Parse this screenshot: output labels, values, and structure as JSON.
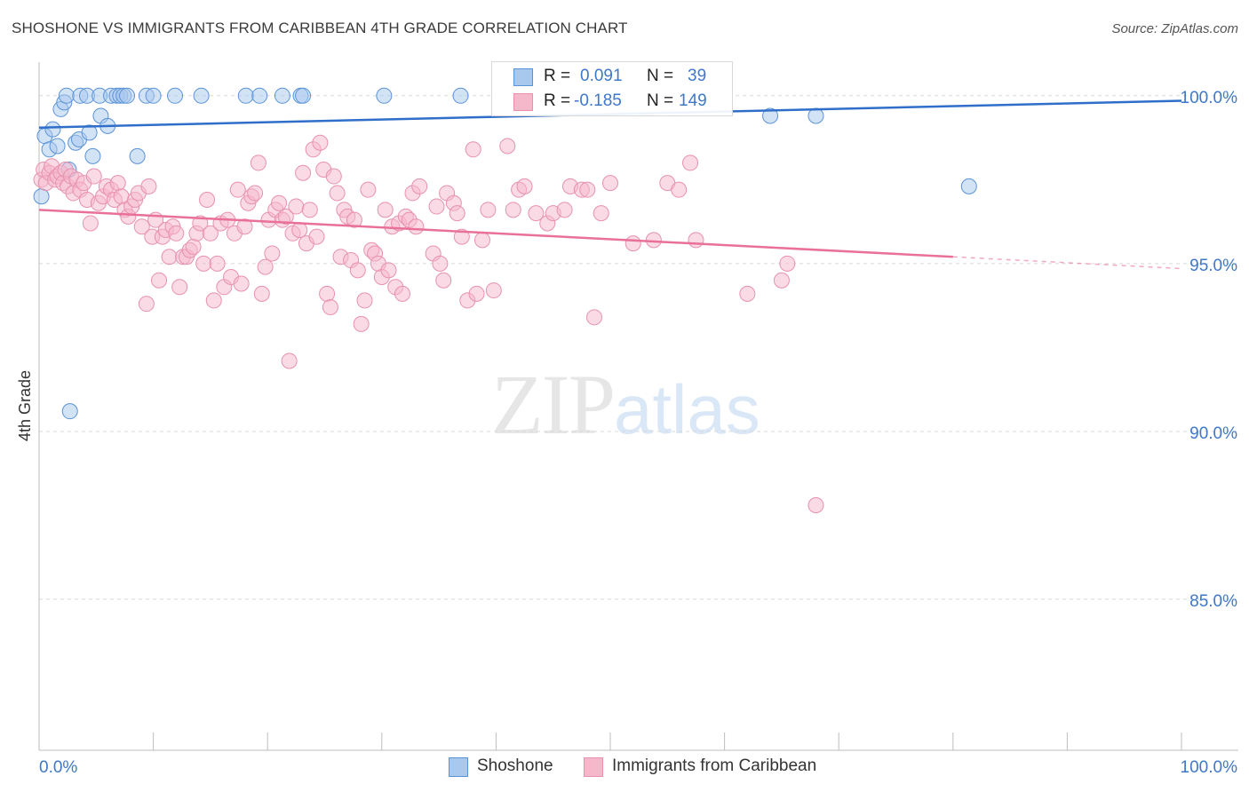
{
  "header": {
    "title": "SHOSHONE VS IMMIGRANTS FROM CARIBBEAN 4TH GRADE CORRELATION CHART",
    "source": "Source: ZipAtlas.com"
  },
  "watermark": {
    "part1": "ZIP",
    "part2": "atlas"
  },
  "legend": {
    "rows": [
      {
        "r_label": "R =",
        "r_value": "0.091",
        "n_label": "N =",
        "n_value": "39"
      },
      {
        "r_label": "R =",
        "r_value": "-0.185",
        "n_label": "N =",
        "n_value": "149"
      }
    ]
  },
  "bottom_legend": [
    "Shoshone",
    "Immigrants from Caribbean"
  ],
  "colors": {
    "blue_fill": "#a8c8ee",
    "blue_stroke": "#5b93d6",
    "blue_line": "#2f6fc9",
    "pink_fill": "#f5b8cb",
    "pink_stroke": "#e891ad",
    "pink_line": "#e8709a",
    "axis_label": "#3f78c8",
    "grid": "#d9d9d9"
  },
  "chart_data": {
    "type": "scatter",
    "title": "SHOSHONE VS IMMIGRANTS FROM CARIBBEAN 4TH GRADE CORRELATION CHART",
    "xlabel": "",
    "ylabel": "4th Grade",
    "xlim": [
      0,
      100
    ],
    "ylim": [
      80.5,
      101.0
    ],
    "x_tick_labels": [
      "0.0%",
      "100.0%"
    ],
    "y_ticks": [
      85,
      90,
      95,
      100
    ],
    "y_tick_labels": [
      "85.0%",
      "90.0%",
      "95.0%",
      "100.0%"
    ],
    "grid": true,
    "series": [
      {
        "name": "Shoshone",
        "color": "blue",
        "R": 0.091,
        "N": 39,
        "trend": {
          "x": [
            0,
            100
          ],
          "y": [
            99.05,
            99.85
          ],
          "dashed_from": null
        },
        "points": [
          [
            0.2,
            97.0
          ],
          [
            0.5,
            98.8
          ],
          [
            0.9,
            98.4
          ],
          [
            1.2,
            99.0
          ],
          [
            1.6,
            98.5
          ],
          [
            1.9,
            99.6
          ],
          [
            2.2,
            99.8
          ],
          [
            2.4,
            100.0
          ],
          [
            2.6,
            97.8
          ],
          [
            2.7,
            90.6
          ],
          [
            3.2,
            98.6
          ],
          [
            3.5,
            98.7
          ],
          [
            3.6,
            100.0
          ],
          [
            4.2,
            100.0
          ],
          [
            4.4,
            98.9
          ],
          [
            4.7,
            98.2
          ],
          [
            5.3,
            100.0
          ],
          [
            5.4,
            99.4
          ],
          [
            6.0,
            99.1
          ],
          [
            6.3,
            100.0
          ],
          [
            6.8,
            100.0
          ],
          [
            7.1,
            100.0
          ],
          [
            7.4,
            100.0
          ],
          [
            7.7,
            100.0
          ],
          [
            8.6,
            98.2
          ],
          [
            9.4,
            100.0
          ],
          [
            10.0,
            100.0
          ],
          [
            11.9,
            100.0
          ],
          [
            14.2,
            100.0
          ],
          [
            18.1,
            100.0
          ],
          [
            19.3,
            100.0
          ],
          [
            21.3,
            100.0
          ],
          [
            22.9,
            100.0
          ],
          [
            23.1,
            100.0
          ],
          [
            30.2,
            100.0
          ],
          [
            36.9,
            100.0
          ],
          [
            64.0,
            99.4
          ],
          [
            68.0,
            99.4
          ],
          [
            81.4,
            97.3
          ]
        ]
      },
      {
        "name": "Immigrants from Caribbean",
        "color": "pink",
        "R": -0.185,
        "N": 149,
        "trend": {
          "x": [
            0,
            100
          ],
          "y": [
            96.6,
            94.85
          ],
          "dashed_from": 80.0
        },
        "points": [
          [
            0.2,
            97.5
          ],
          [
            0.4,
            97.8
          ],
          [
            0.6,
            97.4
          ],
          [
            0.9,
            97.7
          ],
          [
            1.1,
            97.9
          ],
          [
            1.4,
            97.5
          ],
          [
            1.6,
            97.6
          ],
          [
            1.9,
            97.7
          ],
          [
            2.1,
            97.4
          ],
          [
            2.3,
            97.8
          ],
          [
            2.5,
            97.3
          ],
          [
            2.8,
            97.6
          ],
          [
            3.0,
            97.1
          ],
          [
            3.3,
            97.5
          ],
          [
            3.6,
            97.2
          ],
          [
            3.9,
            97.4
          ],
          [
            4.2,
            96.9
          ],
          [
            4.5,
            96.2
          ],
          [
            4.8,
            97.6
          ],
          [
            5.2,
            96.8
          ],
          [
            5.6,
            97.0
          ],
          [
            5.9,
            97.3
          ],
          [
            6.3,
            97.2
          ],
          [
            6.6,
            96.9
          ],
          [
            6.9,
            97.4
          ],
          [
            7.2,
            97.0
          ],
          [
            7.5,
            96.6
          ],
          [
            7.8,
            96.4
          ],
          [
            8.1,
            96.7
          ],
          [
            8.4,
            96.9
          ],
          [
            8.7,
            97.1
          ],
          [
            9.0,
            96.1
          ],
          [
            9.4,
            93.8
          ],
          [
            9.6,
            97.3
          ],
          [
            9.9,
            95.8
          ],
          [
            10.2,
            96.3
          ],
          [
            10.5,
            94.5
          ],
          [
            10.8,
            95.8
          ],
          [
            11.1,
            96.0
          ],
          [
            11.4,
            95.2
          ],
          [
            11.7,
            96.1
          ],
          [
            12.0,
            95.9
          ],
          [
            12.3,
            94.3
          ],
          [
            12.6,
            95.2
          ],
          [
            12.9,
            95.2
          ],
          [
            13.2,
            95.4
          ],
          [
            13.5,
            95.5
          ],
          [
            13.8,
            95.9
          ],
          [
            14.1,
            96.2
          ],
          [
            14.4,
            95.0
          ],
          [
            14.7,
            96.9
          ],
          [
            15.0,
            95.9
          ],
          [
            15.3,
            93.9
          ],
          [
            15.6,
            95.0
          ],
          [
            15.9,
            96.2
          ],
          [
            16.2,
            94.3
          ],
          [
            16.5,
            96.3
          ],
          [
            16.8,
            94.6
          ],
          [
            17.1,
            95.9
          ],
          [
            17.4,
            97.2
          ],
          [
            17.7,
            94.4
          ],
          [
            18.0,
            96.1
          ],
          [
            18.3,
            96.8
          ],
          [
            18.6,
            97.0
          ],
          [
            18.9,
            97.1
          ],
          [
            19.2,
            98.0
          ],
          [
            19.5,
            94.1
          ],
          [
            19.8,
            94.9
          ],
          [
            20.1,
            96.3
          ],
          [
            20.4,
            95.3
          ],
          [
            20.7,
            96.6
          ],
          [
            21.0,
            96.8
          ],
          [
            21.3,
            96.3
          ],
          [
            21.6,
            96.4
          ],
          [
            21.9,
            92.1
          ],
          [
            22.2,
            95.9
          ],
          [
            22.5,
            96.7
          ],
          [
            22.8,
            96.0
          ],
          [
            23.1,
            97.7
          ],
          [
            23.4,
            95.6
          ],
          [
            23.7,
            96.6
          ],
          [
            24.0,
            98.4
          ],
          [
            24.3,
            95.8
          ],
          [
            24.6,
            98.6
          ],
          [
            24.9,
            97.8
          ],
          [
            25.2,
            94.1
          ],
          [
            25.5,
            93.7
          ],
          [
            25.8,
            97.6
          ],
          [
            26.1,
            97.1
          ],
          [
            26.4,
            95.2
          ],
          [
            26.7,
            96.6
          ],
          [
            27.0,
            96.4
          ],
          [
            27.3,
            95.1
          ],
          [
            27.6,
            96.3
          ],
          [
            27.9,
            94.8
          ],
          [
            28.2,
            93.2
          ],
          [
            28.5,
            93.9
          ],
          [
            28.8,
            97.2
          ],
          [
            29.1,
            95.4
          ],
          [
            29.4,
            95.3
          ],
          [
            29.7,
            95.0
          ],
          [
            30.0,
            94.6
          ],
          [
            30.3,
            96.6
          ],
          [
            30.6,
            94.8
          ],
          [
            30.9,
            96.1
          ],
          [
            31.2,
            94.3
          ],
          [
            31.5,
            96.2
          ],
          [
            31.8,
            94.1
          ],
          [
            32.1,
            96.4
          ],
          [
            32.4,
            96.3
          ],
          [
            32.7,
            97.1
          ],
          [
            33.0,
            96.1
          ],
          [
            33.3,
            97.3
          ],
          [
            34.5,
            95.3
          ],
          [
            34.8,
            96.7
          ],
          [
            35.1,
            95.0
          ],
          [
            35.4,
            94.5
          ],
          [
            35.7,
            97.1
          ],
          [
            36.3,
            96.8
          ],
          [
            36.6,
            96.5
          ],
          [
            37.0,
            95.8
          ],
          [
            37.5,
            93.9
          ],
          [
            38.0,
            98.4
          ],
          [
            38.3,
            94.1
          ],
          [
            38.8,
            95.7
          ],
          [
            39.3,
            96.6
          ],
          [
            39.8,
            94.2
          ],
          [
            41.0,
            98.5
          ],
          [
            41.5,
            96.6
          ],
          [
            42.0,
            97.2
          ],
          [
            42.5,
            97.3
          ],
          [
            43.5,
            96.5
          ],
          [
            44.5,
            96.2
          ],
          [
            45.0,
            96.5
          ],
          [
            46.0,
            96.6
          ],
          [
            46.5,
            97.3
          ],
          [
            47.5,
            97.2
          ],
          [
            48.0,
            97.2
          ],
          [
            48.6,
            93.4
          ],
          [
            49.2,
            96.5
          ],
          [
            50.0,
            97.4
          ],
          [
            52.0,
            95.6
          ],
          [
            53.8,
            95.7
          ],
          [
            55.0,
            97.4
          ],
          [
            56.0,
            97.2
          ],
          [
            57.0,
            98.0
          ],
          [
            57.5,
            95.7
          ],
          [
            62.0,
            94.1
          ],
          [
            65.0,
            94.5
          ],
          [
            65.5,
            95.0
          ],
          [
            68.0,
            87.8
          ]
        ]
      }
    ]
  }
}
